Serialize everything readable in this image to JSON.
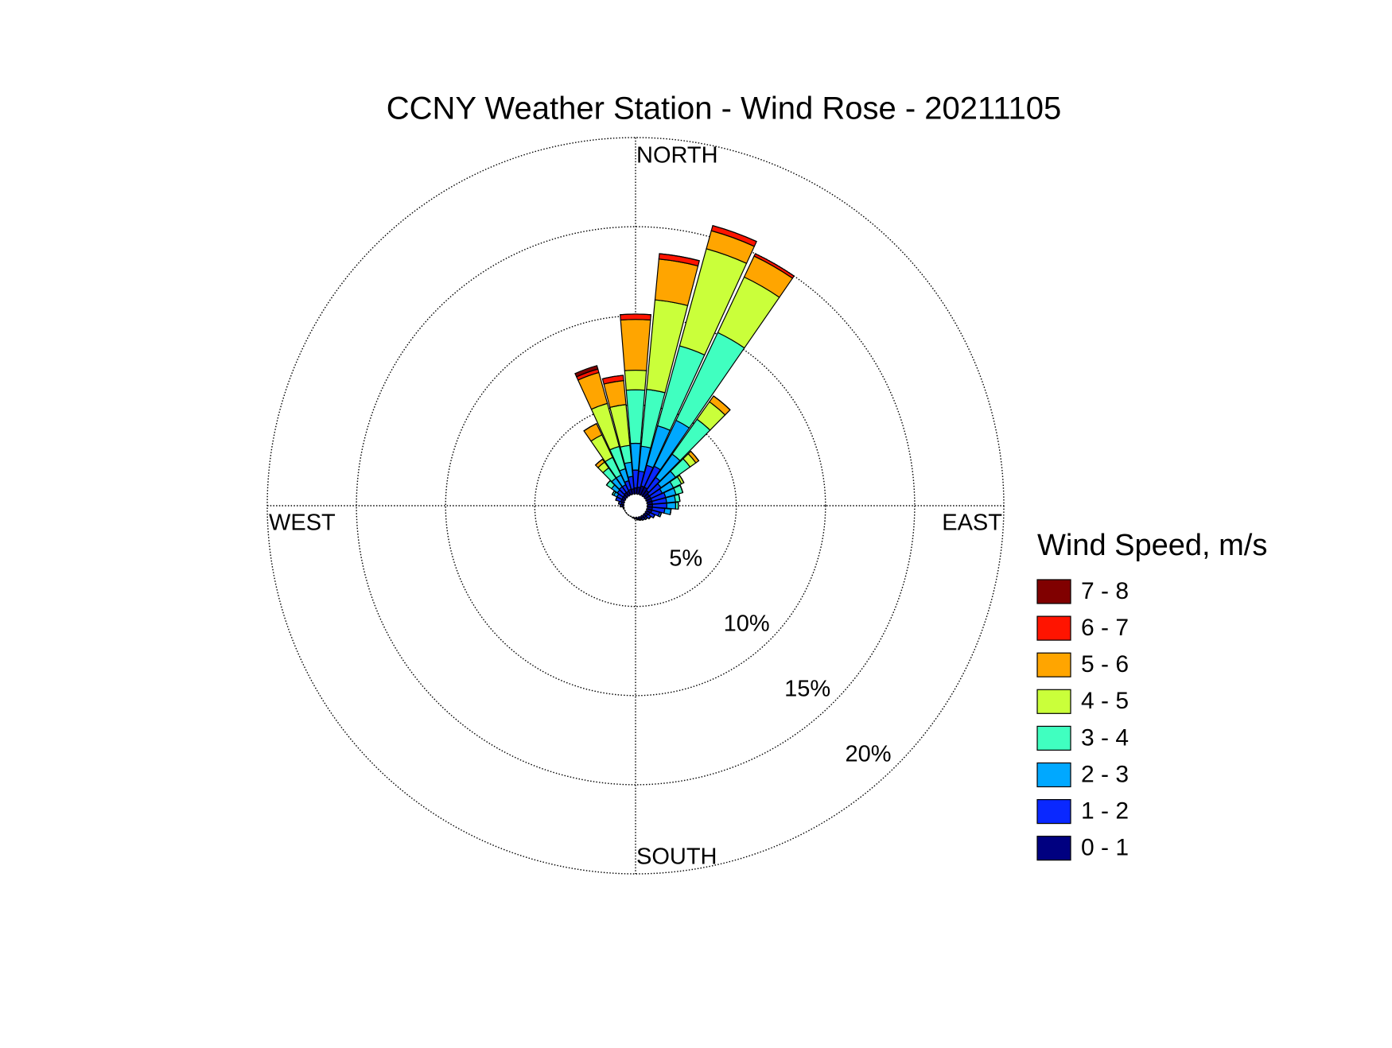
{
  "chart_data": {
    "type": "windrose",
    "title": "CCNY Weather Station - Wind Rose - 20211105",
    "legend_title": "Wind Speed, m/s",
    "compass_labels": {
      "north": "NORTH",
      "east": "EAST",
      "south": "SOUTH",
      "west": "WEST"
    },
    "x": [
      0,
      10,
      20,
      30,
      40,
      50,
      60,
      70,
      80,
      90,
      100,
      110,
      120,
      130,
      140,
      150,
      160,
      170,
      180,
      190,
      200,
      210,
      220,
      230,
      240,
      250,
      260,
      270,
      280,
      290,
      300,
      310,
      320,
      330,
      340,
      350
    ],
    "rlim": [
      0,
      20
    ],
    "rticks": [
      {
        "value": 5,
        "label": "5%"
      },
      {
        "value": 10,
        "label": "10%"
      },
      {
        "value": 15,
        "label": "15%"
      },
      {
        "value": 20,
        "label": "20%"
      }
    ],
    "legend": "right",
    "series": [
      {
        "name": "7 - 8",
        "color": "#800000",
        "values": [
          0,
          0,
          0,
          0,
          0,
          0,
          0,
          0,
          0,
          0,
          0,
          0,
          0,
          0,
          0,
          0,
          0,
          0,
          0,
          0,
          0,
          0,
          0,
          0,
          0,
          0,
          0,
          0,
          0,
          0,
          0,
          0,
          0,
          0,
          0.2,
          0
        ]
      },
      {
        "name": "6 - 7",
        "color": "#ff1400",
        "values": [
          0.3,
          0.3,
          0.3,
          0.15,
          0,
          0,
          0,
          0,
          0,
          0,
          0,
          0,
          0,
          0,
          0,
          0,
          0,
          0,
          0,
          0,
          0,
          0,
          0,
          0,
          0,
          0,
          0,
          0,
          0,
          0,
          0,
          0,
          0,
          0,
          0.2,
          0.3
        ]
      },
      {
        "name": "5 - 6",
        "color": "#ffa500",
        "values": [
          2.85,
          2.3,
          1.05,
          1.3,
          0.4,
          0.2,
          0,
          0,
          0,
          0,
          0,
          0,
          0,
          0,
          0,
          0,
          0,
          0,
          0,
          0,
          0,
          0,
          0,
          0,
          0,
          0,
          0,
          0,
          0,
          0,
          0,
          0,
          0.2,
          0.7,
          1.8,
          1.35
        ]
      },
      {
        "name": "4 - 5",
        "color": "#caff3a",
        "values": [
          1.1,
          5.05,
          5.65,
          3.45,
          1.2,
          0.4,
          0.15,
          0,
          0,
          0,
          0,
          0,
          0,
          0,
          0,
          0,
          0,
          0,
          0,
          0,
          0,
          0,
          0,
          0,
          0,
          0,
          0,
          0,
          0,
          0,
          0,
          0,
          0.4,
          1.4,
          2.5,
          2.3
        ]
      },
      {
        "name": "3 - 4",
        "color": "#40ffc0",
        "values": [
          3.0,
          3.2,
          4.65,
          5.45,
          2.4,
          1.0,
          0.5,
          0.4,
          0.25,
          0.15,
          0,
          0,
          0,
          0,
          0,
          0,
          0,
          0,
          0,
          0,
          0,
          0,
          0,
          0,
          0,
          0,
          0,
          0,
          0,
          0,
          0.1,
          0.35,
          0.7,
          1.1,
          1.3,
          0.95
        ]
      },
      {
        "name": "2 - 3",
        "color": "#00a8ff",
        "values": [
          1.5,
          1.4,
          2.3,
          2.85,
          1.6,
          1.0,
          0.7,
          0.6,
          0.5,
          0.5,
          0.35,
          0.1,
          0,
          0,
          0,
          0,
          0,
          0,
          0,
          0,
          0,
          0,
          0,
          0,
          0,
          0,
          0,
          0,
          0,
          0,
          0.2,
          0.4,
          0.6,
          0.6,
          0.7,
          0.8
        ]
      },
      {
        "name": "1 - 2",
        "color": "#0a28ff",
        "values": [
          1.0,
          0.9,
          1.2,
          1.3,
          0.9,
          0.8,
          0.7,
          0.8,
          0.8,
          0.8,
          0.7,
          0.45,
          0.3,
          0.2,
          0.1,
          0.1,
          0.05,
          0.05,
          0,
          0,
          0,
          0,
          0,
          0,
          0,
          0,
          0,
          0.1,
          0.15,
          0.3,
          0.3,
          0.4,
          0.4,
          0.4,
          0.5,
          0.7
        ]
      },
      {
        "name": "0 - 1",
        "color": "#000080",
        "values": [
          0.35,
          0.4,
          0.5,
          0.5,
          0.4,
          0.3,
          0.3,
          0.3,
          0.3,
          0.3,
          0.3,
          0.3,
          0.25,
          0.2,
          0.2,
          0.15,
          0.15,
          0.1,
          0.1,
          0.05,
          0,
          0,
          0,
          0,
          0,
          0,
          0.05,
          0.1,
          0.15,
          0.2,
          0.2,
          0.2,
          0.25,
          0.25,
          0.3,
          0.3
        ]
      }
    ]
  }
}
